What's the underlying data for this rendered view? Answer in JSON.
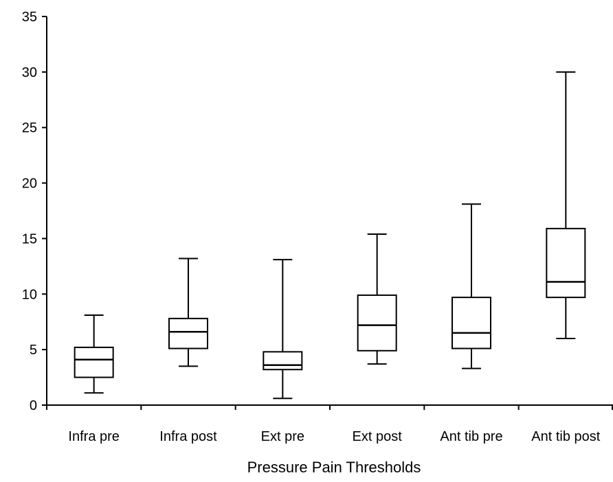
{
  "chart_data": {
    "type": "box",
    "xlabel": "Pressure Pain Thresholds",
    "ylabel": "",
    "ylim": [
      0,
      35
    ],
    "yticks": [
      0,
      5,
      10,
      15,
      20,
      25,
      30,
      35
    ],
    "grid": false,
    "categories": [
      "Infra pre",
      "Infra post",
      "Ext pre",
      "Ext post",
      "Ant tib pre",
      "Ant tib post"
    ],
    "boxes": [
      {
        "label": "Infra pre",
        "min": 1.1,
        "q1": 2.5,
        "median": 4.1,
        "q3": 5.2,
        "max": 8.1
      },
      {
        "label": "Infra post",
        "min": 3.5,
        "q1": 5.1,
        "median": 6.6,
        "q3": 7.8,
        "max": 13.2
      },
      {
        "label": "Ext pre",
        "min": 0.6,
        "q1": 3.2,
        "median": 3.6,
        "q3": 4.8,
        "max": 13.1
      },
      {
        "label": "Ext post",
        "min": 3.7,
        "q1": 4.9,
        "median": 7.2,
        "q3": 9.9,
        "max": 15.4
      },
      {
        "label": "Ant tib pre",
        "min": 3.3,
        "q1": 5.1,
        "median": 6.5,
        "q3": 9.7,
        "max": 18.1
      },
      {
        "label": "Ant tib post",
        "min": 6.0,
        "q1": 9.7,
        "median": 11.1,
        "q3": 15.9,
        "max": 30.0
      }
    ]
  }
}
